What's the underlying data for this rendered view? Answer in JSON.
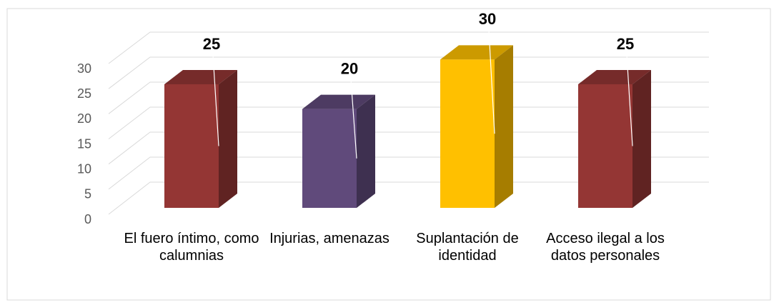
{
  "chart_data": {
    "type": "bar3d",
    "categories": [
      "El fuero íntimo, como calumnias",
      "Injurias, amenazas",
      "Suplantación de identidad",
      "Acceso ilegal a los datos personales"
    ],
    "values": [
      25,
      20,
      30,
      25
    ],
    "colors": [
      "#943634",
      "#604a7b",
      "#ffc000",
      "#943634"
    ],
    "ylim": [
      0,
      30
    ],
    "yticks": [
      0,
      5,
      10,
      15,
      20,
      25,
      30
    ],
    "grid": true
  }
}
